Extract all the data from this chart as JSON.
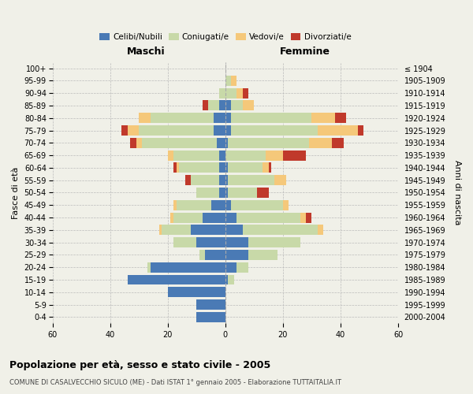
{
  "age_groups": [
    "0-4",
    "5-9",
    "10-14",
    "15-19",
    "20-24",
    "25-29",
    "30-34",
    "35-39",
    "40-44",
    "45-49",
    "50-54",
    "55-59",
    "60-64",
    "65-69",
    "70-74",
    "75-79",
    "80-84",
    "85-89",
    "90-94",
    "95-99",
    "100+"
  ],
  "birth_years": [
    "2000-2004",
    "1995-1999",
    "1990-1994",
    "1985-1989",
    "1980-1984",
    "1975-1979",
    "1970-1974",
    "1965-1969",
    "1960-1964",
    "1955-1959",
    "1950-1954",
    "1945-1949",
    "1940-1944",
    "1935-1939",
    "1930-1934",
    "1925-1929",
    "1920-1924",
    "1915-1919",
    "1910-1914",
    "1905-1909",
    "≤ 1904"
  ],
  "male_celibe": [
    10,
    10,
    20,
    34,
    26,
    7,
    10,
    12,
    8,
    5,
    2,
    2,
    2,
    2,
    3,
    4,
    4,
    2,
    0,
    0,
    0
  ],
  "male_coniugato": [
    0,
    0,
    0,
    0,
    1,
    2,
    8,
    10,
    10,
    12,
    8,
    10,
    14,
    16,
    26,
    26,
    22,
    4,
    2,
    0,
    0
  ],
  "male_vedovo": [
    0,
    0,
    0,
    0,
    0,
    0,
    0,
    1,
    1,
    1,
    0,
    0,
    1,
    2,
    2,
    4,
    4,
    0,
    0,
    0,
    0
  ],
  "male_divorziato": [
    0,
    0,
    0,
    0,
    0,
    0,
    0,
    0,
    0,
    0,
    0,
    2,
    1,
    0,
    2,
    2,
    0,
    2,
    0,
    0,
    0
  ],
  "female_celibe": [
    0,
    0,
    0,
    1,
    4,
    8,
    8,
    6,
    4,
    2,
    1,
    1,
    1,
    0,
    1,
    2,
    2,
    2,
    0,
    0,
    0
  ],
  "female_coniugato": [
    0,
    0,
    0,
    2,
    4,
    10,
    18,
    26,
    22,
    18,
    10,
    16,
    12,
    14,
    28,
    30,
    28,
    4,
    4,
    2,
    0
  ],
  "female_vedovo": [
    0,
    0,
    0,
    0,
    0,
    0,
    0,
    2,
    2,
    2,
    0,
    4,
    2,
    6,
    8,
    14,
    8,
    4,
    2,
    2,
    0
  ],
  "female_divorziato": [
    0,
    0,
    0,
    0,
    0,
    0,
    0,
    0,
    2,
    0,
    4,
    0,
    1,
    8,
    4,
    2,
    4,
    0,
    2,
    0,
    0
  ],
  "colors": {
    "celibe": "#4a7ab5",
    "coniugato": "#c8d9a8",
    "vedovo": "#f5c87a",
    "divorziato": "#c0392b"
  },
  "xlim": 60,
  "title": "Popolazione per età, sesso e stato civile - 2005",
  "subtitle": "COMUNE DI CASALVECCHIO SICULO (ME) - Dati ISTAT 1° gennaio 2005 - Elaborazione TUTTAITALIA.IT",
  "ylabel": "Fasce di età",
  "ylabel_right": "Anni di nascita",
  "legend_labels": [
    "Celibi/Nubili",
    "Coniugati/e",
    "Vedovi/e",
    "Divorziati/e"
  ],
  "bg_color": "#f0f0e8",
  "maschi_label": "Maschi",
  "femmine_label": "Femmine"
}
